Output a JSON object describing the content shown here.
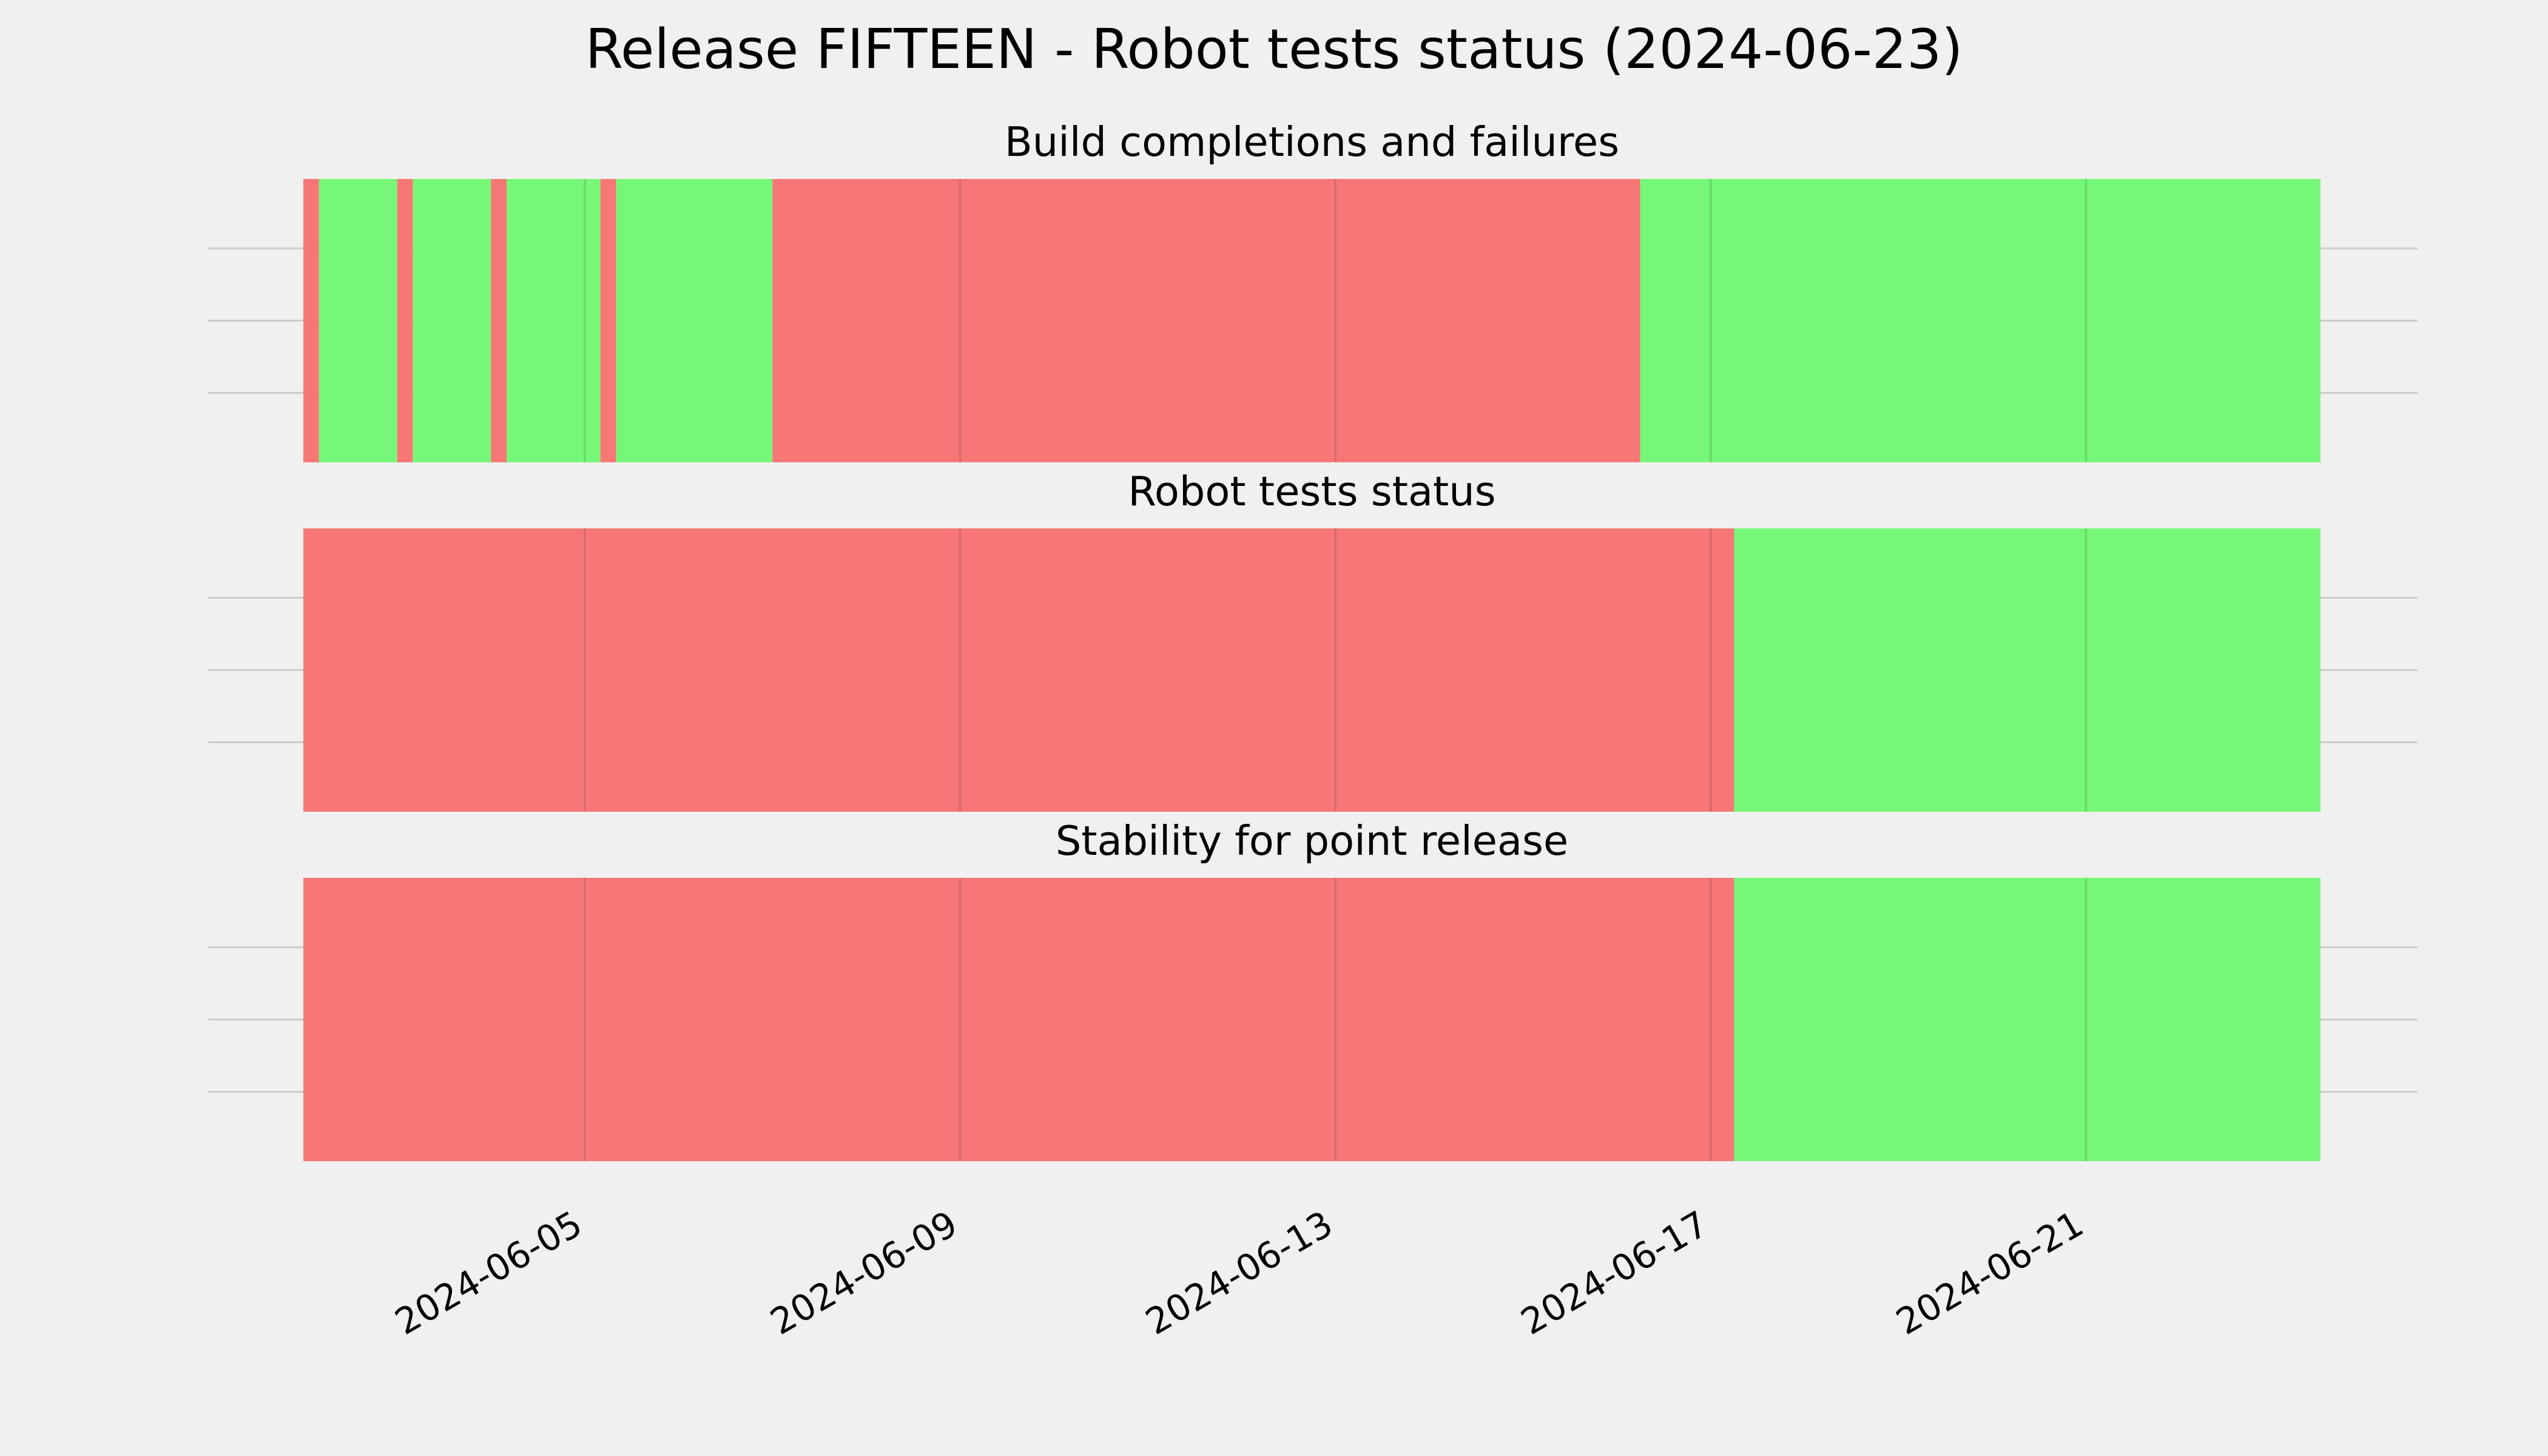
{
  "chart_data": {
    "type": "timeline",
    "title": "Release FIFTEEN - Robot tests status (2024-06-23)",
    "x_axis": {
      "type": "date",
      "range": [
        "2024-06-02T00:00",
        "2024-06-23T12:00"
      ],
      "ticks": [
        "2024-06-05",
        "2024-06-09",
        "2024-06-13",
        "2024-06-17",
        "2024-06-21"
      ],
      "tick_label_rotation_deg": 30
    },
    "grid": true,
    "status_colors": {
      "fail": "#f77777",
      "pass": "#77f777"
    },
    "panels": [
      {
        "title": "Build completions and failures",
        "segments": [
          {
            "start": "2024-06-02T00:00",
            "end": "2024-06-02T04:00",
            "status": "fail"
          },
          {
            "start": "2024-06-02T04:00",
            "end": "2024-06-03T00:00",
            "status": "pass"
          },
          {
            "start": "2024-06-03T00:00",
            "end": "2024-06-03T04:00",
            "status": "fail"
          },
          {
            "start": "2024-06-03T04:00",
            "end": "2024-06-04T00:00",
            "status": "pass"
          },
          {
            "start": "2024-06-04T00:00",
            "end": "2024-06-04T04:00",
            "status": "fail"
          },
          {
            "start": "2024-06-04T04:00",
            "end": "2024-06-05T04:00",
            "status": "pass"
          },
          {
            "start": "2024-06-05T04:00",
            "end": "2024-06-05T08:00",
            "status": "fail"
          },
          {
            "start": "2024-06-05T08:00",
            "end": "2024-06-07T00:00",
            "status": "pass"
          },
          {
            "start": "2024-06-07T00:00",
            "end": "2024-06-16T06:00",
            "status": "fail"
          },
          {
            "start": "2024-06-16T06:00",
            "end": "2024-06-23T12:00",
            "status": "pass"
          }
        ]
      },
      {
        "title": "Robot tests status",
        "segments": [
          {
            "start": "2024-06-02T00:00",
            "end": "2024-06-17T06:00",
            "status": "fail"
          },
          {
            "start": "2024-06-17T06:00",
            "end": "2024-06-23T12:00",
            "status": "pass"
          }
        ]
      },
      {
        "title": "Stability for point release",
        "segments": [
          {
            "start": "2024-06-02T00:00",
            "end": "2024-06-17T06:00",
            "status": "fail"
          },
          {
            "start": "2024-06-17T06:00",
            "end": "2024-06-23T12:00",
            "status": "pass"
          }
        ]
      }
    ]
  }
}
